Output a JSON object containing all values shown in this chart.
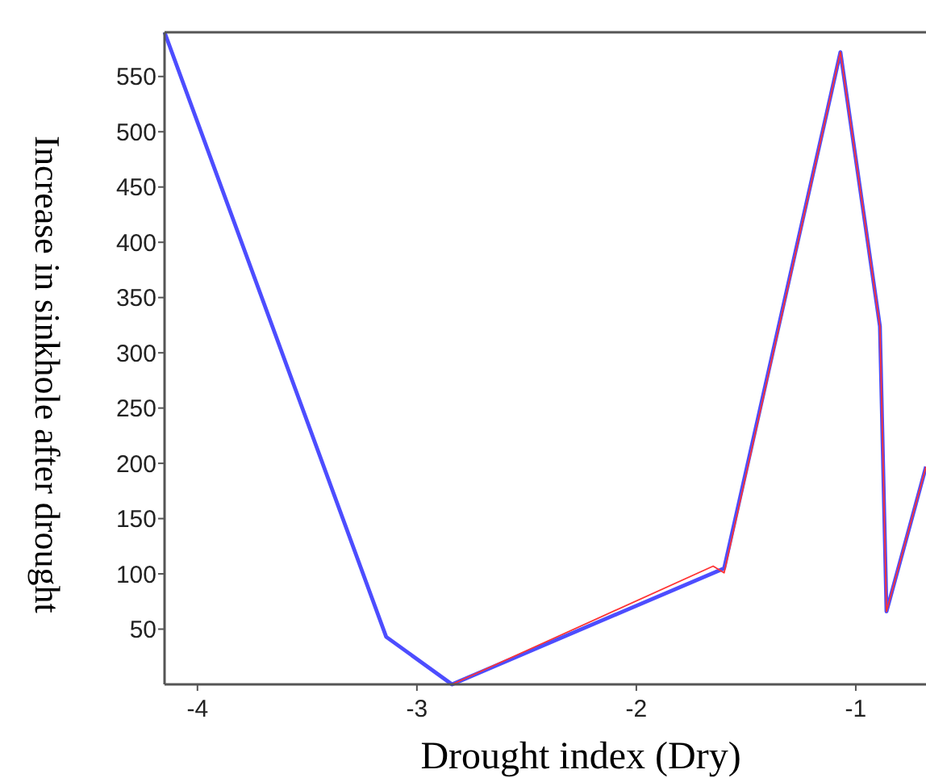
{
  "chart_data": {
    "type": "line",
    "xlabel": "Drought index (Dry)",
    "ylabel": "Increase in sinkhole after drought",
    "xlim": [
      -4.15,
      -0.68
    ],
    "ylim": [
      0,
      590
    ],
    "xticks": [
      -4,
      -3,
      -2,
      -1
    ],
    "yticks": [
      50,
      100,
      150,
      200,
      250,
      300,
      350,
      400,
      450,
      500,
      550
    ],
    "grid": false,
    "marker": "none",
    "line_style": "solid",
    "series": [
      {
        "color": "#ff3333",
        "x": [
          -2.84,
          -1.65,
          -1.6,
          -1.07,
          -0.89,
          -0.86,
          -0.68
        ],
        "values": [
          0,
          107,
          101,
          572,
          324,
          66,
          197
        ]
      },
      {
        "color": "#4d4dff",
        "x": [
          -4.15,
          -3.14,
          -2.84,
          -1.6,
          -1.07,
          -0.89,
          -0.86,
          -0.68
        ],
        "values": [
          590,
          43,
          0,
          105,
          572,
          324,
          66,
          197
        ]
      }
    ]
  }
}
